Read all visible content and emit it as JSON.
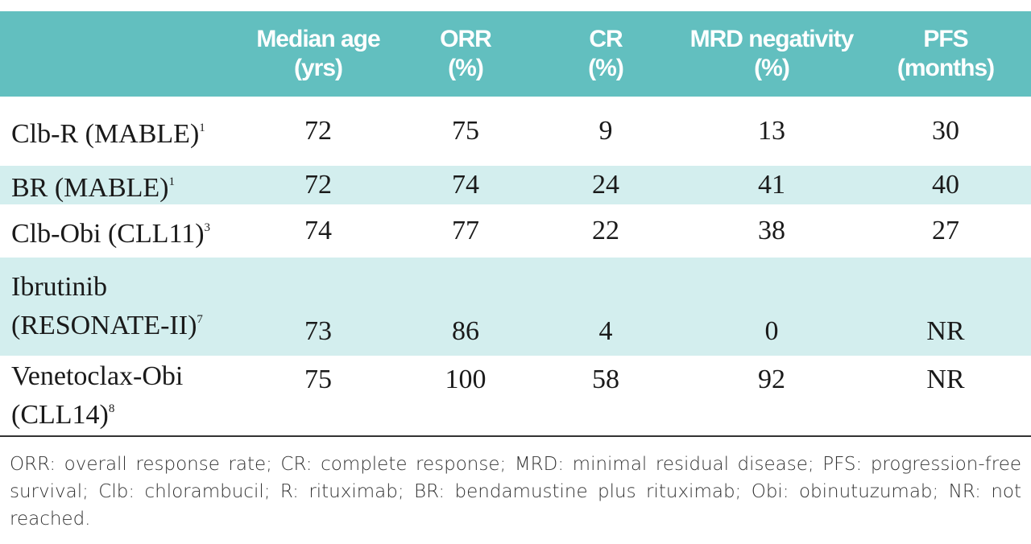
{
  "table": {
    "header": [
      [],
      [
        "Median age",
        "(yrs)"
      ],
      [
        "ORR",
        "(%)"
      ],
      [
        "CR",
        "(%)"
      ],
      [
        "MRD negativity",
        "(%)"
      ],
      [
        "PFS",
        "(months)"
      ]
    ],
    "rows": [
      {
        "label": [
          "Clb-R (MABLE)"
        ],
        "ref": "1",
        "values": [
          72,
          75,
          9,
          13,
          30
        ]
      },
      {
        "label": [
          "BR (MABLE)"
        ],
        "ref": "1",
        "values": [
          72,
          74,
          24,
          41,
          40
        ]
      },
      {
        "label": [
          "Clb-Obi (CLL11)"
        ],
        "ref": "3",
        "values": [
          74,
          77,
          22,
          38,
          27
        ]
      },
      {
        "label": [
          "Ibrutinib",
          "(RESONATE-II)"
        ],
        "ref": "7",
        "values": [
          73,
          86,
          4,
          0,
          "NR"
        ]
      },
      {
        "label": [
          "Venetoclax-Obi",
          "(CLL14)"
        ],
        "ref": "8",
        "values": [
          75,
          100,
          58,
          92,
          "NR"
        ]
      }
    ]
  },
  "footnote": "ORR: overall response rate; CR: complete response; MRD: minimal residual disease; PFS: progression-free survival; Clb: chlorambucil; R: rituximab; BR: bendamustine plus rituximab; Obi: obinutuzumab; NR: not reached."
}
